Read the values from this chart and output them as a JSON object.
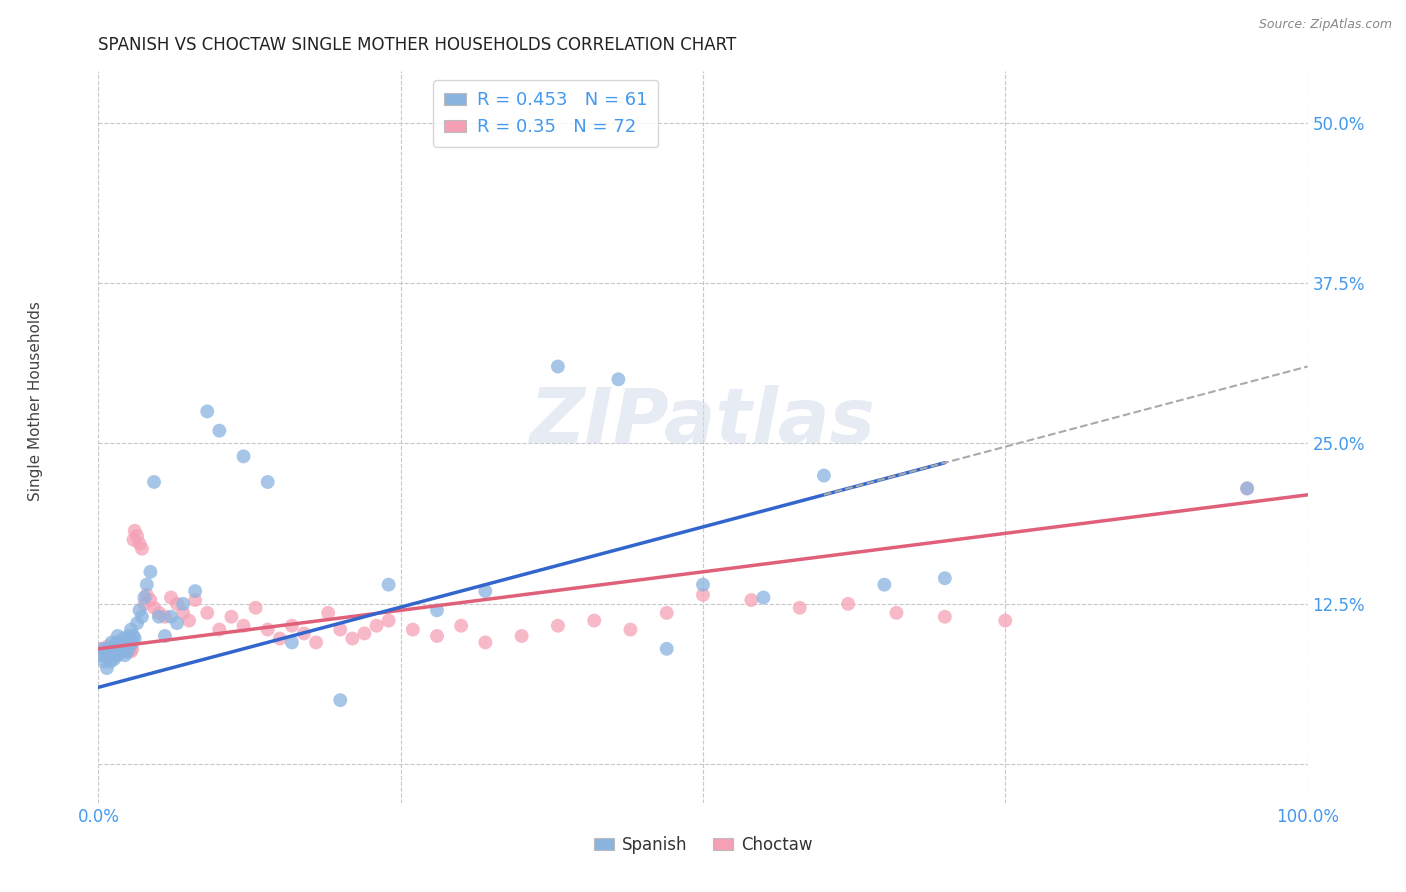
{
  "title": "SPANISH VS CHOCTAW SINGLE MOTHER HOUSEHOLDS CORRELATION CHART",
  "source": "Source: ZipAtlas.com",
  "ylabel": "Single Mother Households",
  "xlim": [
    0.0,
    1.0
  ],
  "ylim": [
    -0.03,
    0.54
  ],
  "ytick_positions": [
    0.0,
    0.125,
    0.25,
    0.375,
    0.5
  ],
  "yticklabels": [
    "",
    "12.5%",
    "25.0%",
    "37.5%",
    "50.0%"
  ],
  "grid_color": "#c8c8c8",
  "background_color": "#ffffff",
  "spanish_color": "#8ab4e0",
  "choctaw_color": "#f5a0b5",
  "spanish_line_color": "#3366cc",
  "choctaw_line_color": "#e0607a",
  "tick_color": "#4499ee",
  "spanish_R": 0.453,
  "spanish_N": 61,
  "choctaw_R": 0.35,
  "choctaw_N": 72,
  "watermark": "ZIPatlas",
  "spanish_x": [
    0.002,
    0.004,
    0.005,
    0.006,
    0.007,
    0.008,
    0.009,
    0.01,
    0.011,
    0.012,
    0.013,
    0.013,
    0.014,
    0.015,
    0.016,
    0.016,
    0.017,
    0.018,
    0.019,
    0.02,
    0.021,
    0.022,
    0.023,
    0.024,
    0.025,
    0.026,
    0.027,
    0.028,
    0.029,
    0.03,
    0.032,
    0.034,
    0.036,
    0.038,
    0.04,
    0.043,
    0.046,
    0.05,
    0.055,
    0.06,
    0.065,
    0.07,
    0.08,
    0.09,
    0.1,
    0.12,
    0.14,
    0.16,
    0.2,
    0.24,
    0.28,
    0.32,
    0.38,
    0.43,
    0.47,
    0.5,
    0.55,
    0.6,
    0.65,
    0.7,
    0.95
  ],
  "spanish_y": [
    0.085,
    0.09,
    0.08,
    0.085,
    0.075,
    0.09,
    0.085,
    0.08,
    0.095,
    0.088,
    0.082,
    0.092,
    0.088,
    0.095,
    0.085,
    0.1,
    0.09,
    0.095,
    0.088,
    0.092,
    0.098,
    0.085,
    0.095,
    0.088,
    0.1,
    0.092,
    0.105,
    0.095,
    0.1,
    0.098,
    0.11,
    0.12,
    0.115,
    0.13,
    0.14,
    0.15,
    0.22,
    0.115,
    0.1,
    0.115,
    0.11,
    0.125,
    0.135,
    0.275,
    0.26,
    0.24,
    0.22,
    0.095,
    0.05,
    0.14,
    0.12,
    0.135,
    0.31,
    0.3,
    0.09,
    0.14,
    0.13,
    0.225,
    0.14,
    0.145,
    0.215
  ],
  "choctaw_x": [
    0.002,
    0.004,
    0.006,
    0.008,
    0.01,
    0.011,
    0.012,
    0.013,
    0.014,
    0.015,
    0.016,
    0.017,
    0.018,
    0.019,
    0.02,
    0.021,
    0.022,
    0.023,
    0.024,
    0.025,
    0.026,
    0.027,
    0.028,
    0.029,
    0.03,
    0.032,
    0.034,
    0.036,
    0.038,
    0.04,
    0.043,
    0.046,
    0.05,
    0.055,
    0.06,
    0.065,
    0.07,
    0.075,
    0.08,
    0.09,
    0.1,
    0.11,
    0.12,
    0.13,
    0.14,
    0.15,
    0.16,
    0.17,
    0.18,
    0.19,
    0.2,
    0.21,
    0.22,
    0.23,
    0.24,
    0.26,
    0.28,
    0.3,
    0.32,
    0.35,
    0.38,
    0.41,
    0.44,
    0.47,
    0.5,
    0.54,
    0.58,
    0.62,
    0.66,
    0.7,
    0.75,
    0.95
  ],
  "choctaw_y": [
    0.09,
    0.088,
    0.085,
    0.092,
    0.088,
    0.085,
    0.09,
    0.088,
    0.085,
    0.09,
    0.092,
    0.088,
    0.095,
    0.09,
    0.088,
    0.092,
    0.095,
    0.09,
    0.088,
    0.095,
    0.092,
    0.088,
    0.09,
    0.175,
    0.182,
    0.178,
    0.172,
    0.168,
    0.125,
    0.132,
    0.128,
    0.122,
    0.118,
    0.115,
    0.13,
    0.125,
    0.118,
    0.112,
    0.128,
    0.118,
    0.105,
    0.115,
    0.108,
    0.122,
    0.105,
    0.098,
    0.108,
    0.102,
    0.095,
    0.118,
    0.105,
    0.098,
    0.102,
    0.108,
    0.112,
    0.105,
    0.1,
    0.108,
    0.095,
    0.1,
    0.108,
    0.112,
    0.105,
    0.118,
    0.132,
    0.128,
    0.122,
    0.125,
    0.118,
    0.115,
    0.112,
    0.215
  ]
}
